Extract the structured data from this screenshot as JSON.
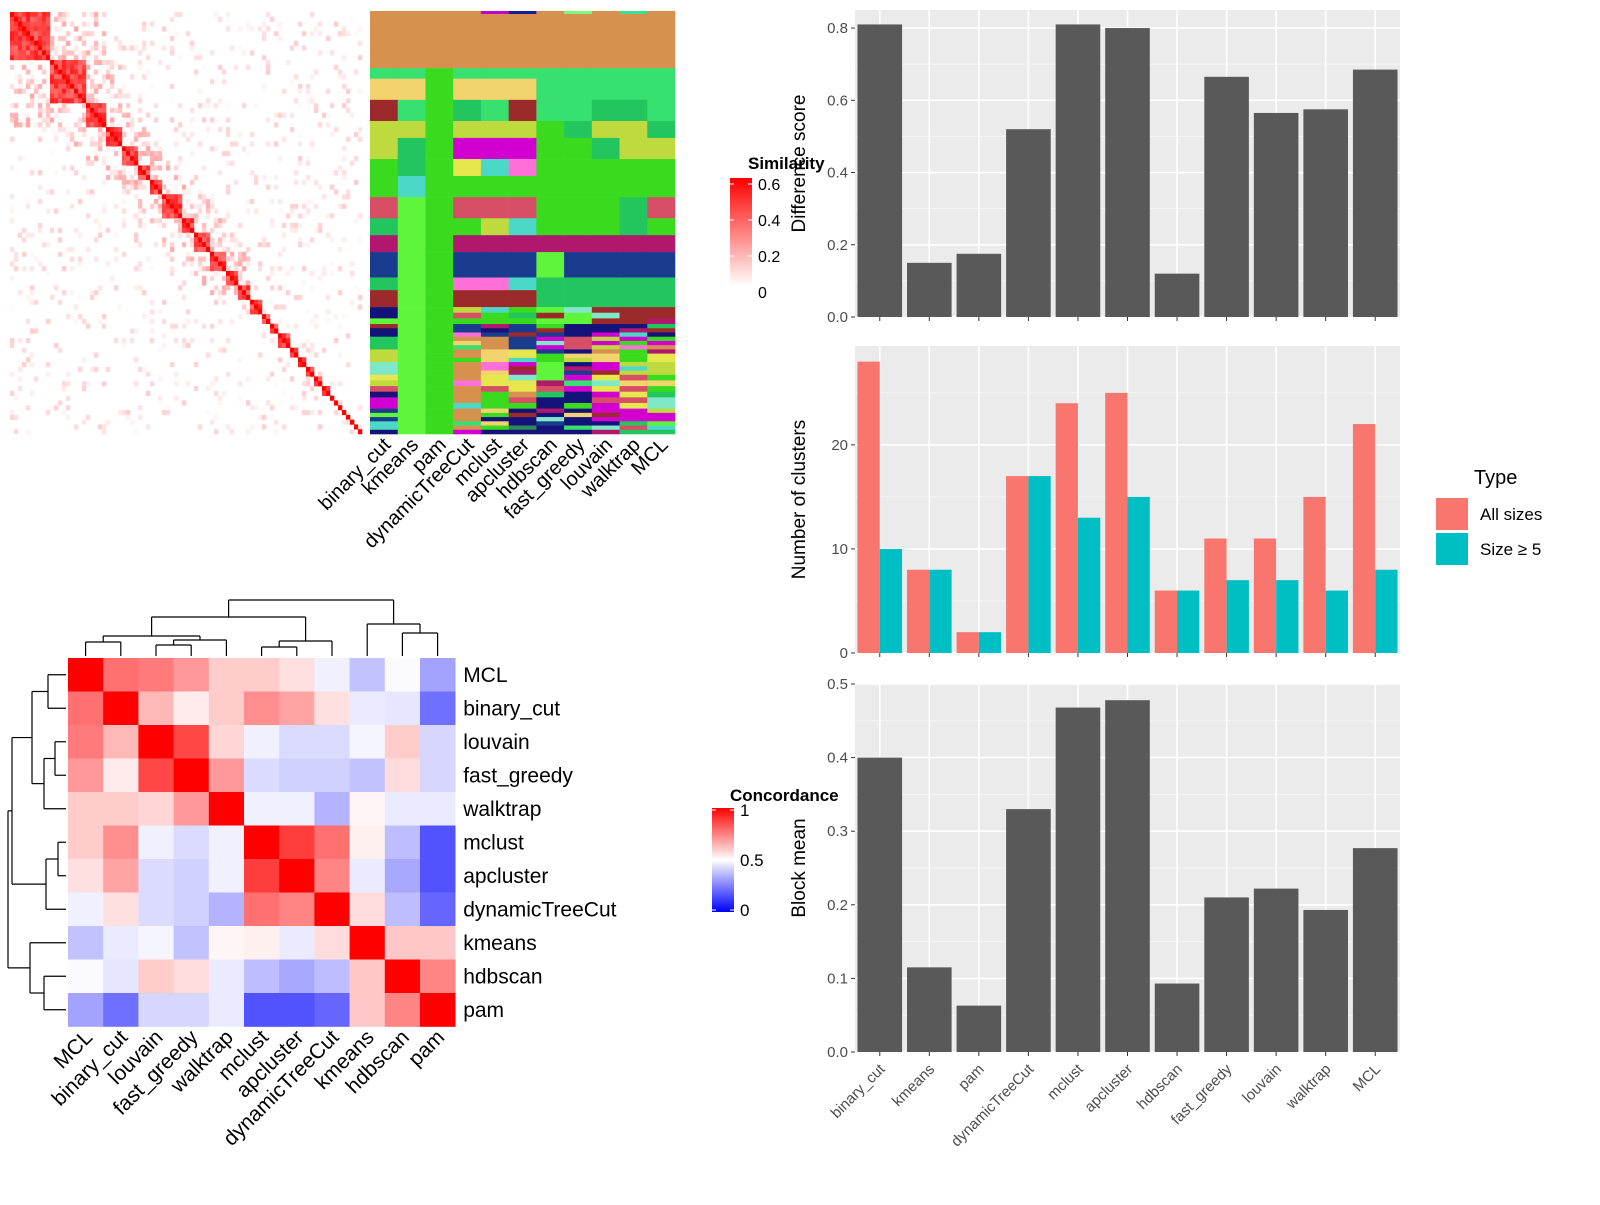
{
  "methods": [
    "binary_cut",
    "kmeans",
    "pam",
    "dynamicTreeCut",
    "mclust",
    "apcluster",
    "hdbscan",
    "fast_greedy",
    "louvain",
    "walktrap",
    "MCL"
  ],
  "concordance_order": [
    "MCL",
    "binary_cut",
    "louvain",
    "fast_greedy",
    "walktrap",
    "mclust",
    "apcluster",
    "dynamicTreeCut",
    "kmeans",
    "hdbscan",
    "pam"
  ],
  "similarity_legend": {
    "title": "Similarity",
    "ticks": [
      "0.6",
      "0.4",
      "0.2",
      "0"
    ]
  },
  "concordance_legend": {
    "title": "Concordance",
    "ticks": [
      "1",
      "0.5",
      "0"
    ]
  },
  "type_legend": {
    "title": "Type",
    "items": [
      "All sizes",
      "Size ≥ 5"
    ]
  },
  "colors": {
    "all_sizes": "#F8766D",
    "size_ge5": "#00BFC4",
    "bar": "#595959",
    "panel_bg": "#EBEBEB",
    "heat_high": "#FF0000",
    "heat_mid": "#FFFFFF",
    "heat_low": "#0000FF"
  },
  "chart_data": [
    {
      "type": "heatmap",
      "name": "similarity",
      "title": "",
      "legend": "Similarity",
      "range": [
        0,
        0.6
      ],
      "note": "term similarity matrix with diagonal blocks"
    },
    {
      "type": "heatmap",
      "name": "cluster-assignments",
      "columns": [
        "binary_cut",
        "kmeans",
        "pam",
        "dynamicTreeCut",
        "mclust",
        "apcluster",
        "hdbscan",
        "fast_greedy",
        "louvain",
        "walktrap",
        "MCL"
      ]
    },
    {
      "type": "heatmap",
      "name": "concordance",
      "legend": "Concordance",
      "rows": [
        "MCL",
        "binary_cut",
        "louvain",
        "fast_greedy",
        "walktrap",
        "mclust",
        "apcluster",
        "dynamicTreeCut",
        "kmeans",
        "hdbscan",
        "pam"
      ],
      "columns": [
        "MCL",
        "binary_cut",
        "louvain",
        "fast_greedy",
        "walktrap",
        "mclust",
        "apcluster",
        "dynamicTreeCut",
        "kmeans",
        "hdbscan",
        "pam"
      ],
      "values": [
        [
          1.0,
          0.78,
          0.76,
          0.7,
          0.6,
          0.6,
          0.56,
          0.47,
          0.38,
          0.49,
          0.32
        ],
        [
          0.78,
          1.0,
          0.64,
          0.54,
          0.6,
          0.72,
          0.68,
          0.56,
          0.46,
          0.45,
          0.22
        ],
        [
          0.76,
          0.64,
          1.0,
          0.86,
          0.58,
          0.47,
          0.43,
          0.43,
          0.48,
          0.6,
          0.42
        ],
        [
          0.7,
          0.54,
          0.86,
          1.0,
          0.7,
          0.43,
          0.41,
          0.41,
          0.38,
          0.57,
          0.42
        ],
        [
          0.6,
          0.6,
          0.58,
          0.7,
          1.0,
          0.47,
          0.47,
          0.35,
          0.52,
          0.46,
          0.46
        ],
        [
          0.6,
          0.72,
          0.47,
          0.43,
          0.47,
          1.0,
          0.88,
          0.78,
          0.53,
          0.37,
          0.16
        ],
        [
          0.56,
          0.68,
          0.43,
          0.41,
          0.47,
          0.88,
          1.0,
          0.74,
          0.46,
          0.33,
          0.16
        ],
        [
          0.47,
          0.56,
          0.43,
          0.41,
          0.35,
          0.78,
          0.74,
          1.0,
          0.57,
          0.37,
          0.2
        ],
        [
          0.38,
          0.46,
          0.48,
          0.38,
          0.52,
          0.53,
          0.46,
          0.57,
          1.0,
          0.61,
          0.61
        ],
        [
          0.49,
          0.45,
          0.6,
          0.57,
          0.46,
          0.37,
          0.33,
          0.37,
          0.61,
          1.0,
          0.74
        ],
        [
          0.32,
          0.22,
          0.42,
          0.42,
          0.46,
          0.16,
          0.16,
          0.2,
          0.61,
          0.74,
          1.0
        ]
      ]
    },
    {
      "type": "bar",
      "categories": [
        "binary_cut",
        "kmeans",
        "pam",
        "dynamicTreeCut",
        "mclust",
        "apcluster",
        "hdbscan",
        "fast_greedy",
        "louvain",
        "walktrap",
        "MCL"
      ],
      "values": [
        0.81,
        0.15,
        0.175,
        0.52,
        0.81,
        0.8,
        0.12,
        0.665,
        0.565,
        0.575,
        0.685
      ],
      "ylabel": "Difference score",
      "ylim": [
        0,
        0.85
      ],
      "yticks": [
        0.0,
        0.2,
        0.4,
        0.6,
        0.8
      ],
      "grid": true
    },
    {
      "type": "bar",
      "categories": [
        "binary_cut",
        "kmeans",
        "pam",
        "dynamicTreeCut",
        "mclust",
        "apcluster",
        "hdbscan",
        "fast_greedy",
        "louvain",
        "walktrap",
        "MCL"
      ],
      "series": [
        {
          "name": "All sizes",
          "values": [
            28,
            8,
            2,
            17,
            24,
            25,
            6,
            11,
            11,
            15,
            22
          ]
        },
        {
          "name": "Size ≥ 5",
          "values": [
            10,
            8,
            2,
            17,
            13,
            15,
            6,
            7,
            7,
            6,
            8
          ]
        }
      ],
      "ylabel": "Number of clusters",
      "ylim": [
        0,
        29.5
      ],
      "yticks": [
        0,
        10,
        20
      ],
      "grid": true,
      "legend": "right"
    },
    {
      "type": "bar",
      "categories": [
        "binary_cut",
        "kmeans",
        "pam",
        "dynamicTreeCut",
        "mclust",
        "apcluster",
        "hdbscan",
        "fast_greedy",
        "louvain",
        "walktrap",
        "MCL"
      ],
      "values": [
        0.4,
        0.115,
        0.063,
        0.33,
        0.468,
        0.478,
        0.093,
        0.21,
        0.222,
        0.193,
        0.277
      ],
      "ylabel": "Block mean",
      "ylim": [
        0,
        0.5
      ],
      "yticks": [
        0.0,
        0.1,
        0.2,
        0.3,
        0.4,
        0.5
      ],
      "grid": true
    }
  ]
}
